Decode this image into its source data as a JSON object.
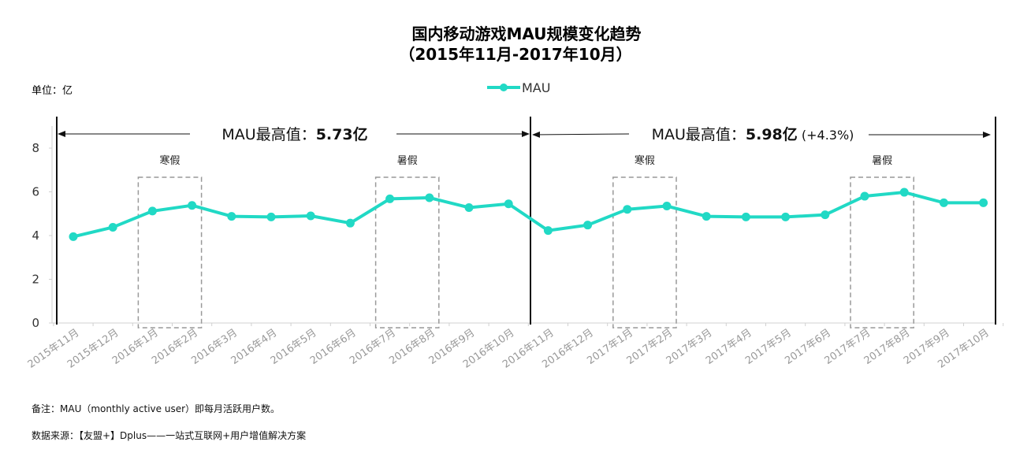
{
  "chart_data": {
    "type": "line",
    "title": "国内移动游戏MAU规模变化趋势",
    "subtitle": "（2015年11月-2017年10月）",
    "unit_label": "单位：亿",
    "legend": "MAU",
    "categories": [
      "2015年11月",
      "2015年12月",
      "2016年1月",
      "2016年2月",
      "2016年3月",
      "2016年4月",
      "2016年5月",
      "2016年6月",
      "2016年7月",
      "2016年8月",
      "2016年9月",
      "2016年10月",
      "2016年11月",
      "2016年12月",
      "2017年1月",
      "2017年2月",
      "2017年3月",
      "2017年4月",
      "2017年5月",
      "2017年6月",
      "2017年7月",
      "2017年8月",
      "2017年9月",
      "2017年10月"
    ],
    "series": [
      {
        "name": "MAU",
        "values": [
          3.95,
          4.38,
          5.12,
          5.38,
          4.88,
          4.85,
          4.9,
          4.57,
          5.68,
          5.73,
          5.28,
          5.45,
          4.23,
          4.48,
          5.2,
          5.35,
          4.88,
          4.85,
          4.85,
          4.95,
          5.8,
          5.98,
          5.5,
          5.5
        ]
      }
    ],
    "ylim": [
      0,
      8
    ],
    "yticks": [
      "0",
      "2",
      "4",
      "6",
      "8"
    ],
    "grid": false,
    "legend_position": "top-center",
    "line_color": "#21d9c5",
    "annotations": {
      "period1": {
        "label": "MAU最高值：",
        "value": "5.73亿",
        "extra": ""
      },
      "period2": {
        "label": "MAU最高值：",
        "value": "5.98亿",
        "extra": " (+4.3%)"
      },
      "boxes": [
        {
          "label": "寒假",
          "from": 2,
          "to": 3
        },
        {
          "label": "暑假",
          "from": 8,
          "to": 9
        },
        {
          "label": "寒假",
          "from": 14,
          "to": 15
        },
        {
          "label": "暑假",
          "from": 20,
          "to": 21
        }
      ]
    }
  },
  "footnotes": {
    "note": "备注：MAU（monthly active user）即每月活跃用户数。",
    "source": "数据来源：【友盟+】Dplus——一站式互联网+用户增值解决方案"
  }
}
